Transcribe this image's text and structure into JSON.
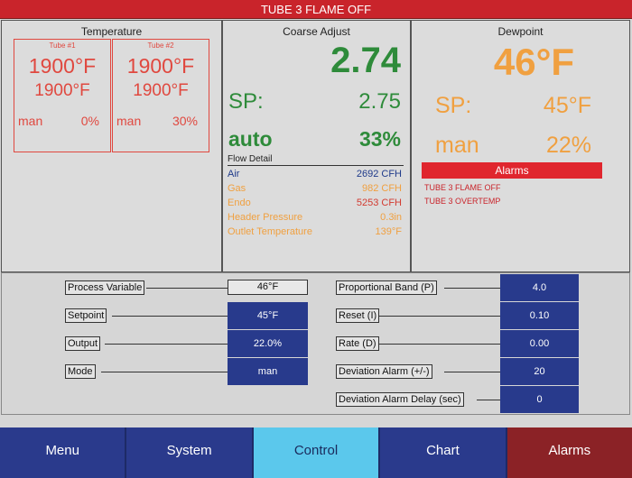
{
  "banner": "TUBE 3 FLAME OFF",
  "temperature": {
    "title": "Temperature",
    "tubes": [
      {
        "name": "Tube #1",
        "value1": "1900°F",
        "value2": "1900°F",
        "mode": "man",
        "pct": "0%"
      },
      {
        "name": "Tube #2",
        "value1": "1900°F",
        "value2": "1900°F",
        "mode": "man",
        "pct": "30%"
      }
    ]
  },
  "coarse": {
    "title": "Coarse Adjust",
    "pv": "2.74",
    "sp_label": "SP:",
    "sp_value": "2.75",
    "mode": "auto",
    "output": "33%",
    "flow_title": "Flow Detail",
    "flow": [
      {
        "label": "Air",
        "value": "2692 CFH",
        "color": "#1f3a8a"
      },
      {
        "label": "Gas",
        "value": "982 CFH",
        "color": "#f0a040"
      },
      {
        "label": "Endo",
        "value": "5253 CFH",
        "color": "#f0a040"
      },
      {
        "label": "Header Pressure",
        "value": "0.3in",
        "color": "#f0a040"
      },
      {
        "label": "Outlet Temperature",
        "value": "139°F",
        "color": "#f0a040"
      }
    ]
  },
  "dewpoint": {
    "title": "Dewpoint",
    "pv": "46°F",
    "sp_label": "SP:",
    "sp_value": "45°F",
    "mode": "man",
    "output": "22%",
    "alarms_title": "Alarms",
    "alarms": [
      "TUBE 3 FLAME OFF",
      "TUBE 3 OVERTEMP"
    ]
  },
  "params_left": [
    {
      "label": "Process Variable",
      "value": "46°F",
      "style": "white"
    },
    {
      "label": "Setpoint",
      "value": "45°F",
      "style": "blue"
    },
    {
      "label": "Output",
      "value": "22.0%",
      "style": "blue"
    },
    {
      "label": "Mode",
      "value": "man",
      "style": "blue"
    }
  ],
  "params_right": [
    {
      "label": "Proportional Band (P)",
      "value": "4.0"
    },
    {
      "label": "Reset (I)",
      "value": "0.10"
    },
    {
      "label": "Rate (D)",
      "value": "0.00"
    },
    {
      "label": "Deviation Alarm (+/-)",
      "value": "20"
    },
    {
      "label": "Deviation Alarm Delay (sec)",
      "value": "0"
    }
  ],
  "nav": [
    {
      "label": "Menu",
      "color": "#2a3a8c"
    },
    {
      "label": "System",
      "color": "#2a3a8c"
    },
    {
      "label": "Control",
      "color": "#5bc8ec"
    },
    {
      "label": "Chart",
      "color": "#2a3a8c"
    },
    {
      "label": "Alarms",
      "color": "#8b2226"
    }
  ]
}
